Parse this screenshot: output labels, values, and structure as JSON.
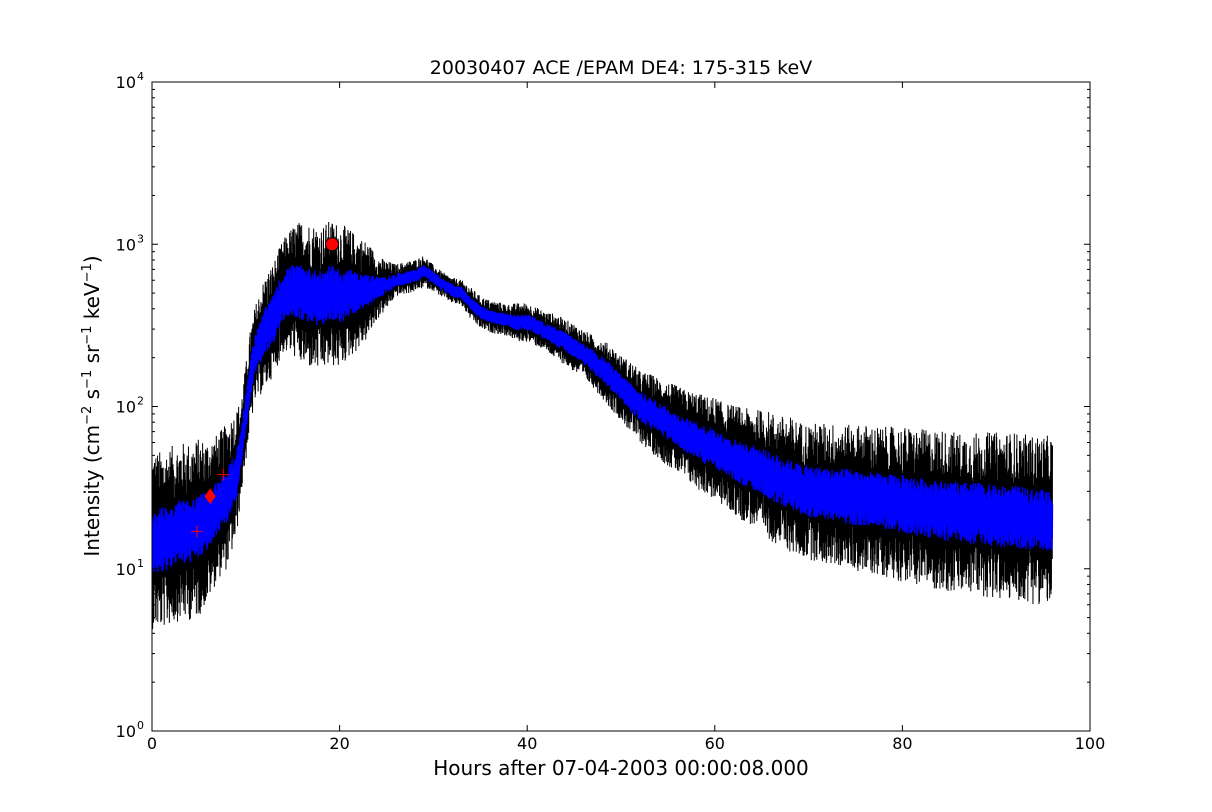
{
  "chart_data": {
    "type": "line",
    "title": "20030407 ACE /EPAM DE4: 175-315 keV",
    "xlabel": "Hours after 07-04-2003 00:00:08.000",
    "ylabel": {
      "prefix": "Intensity (cm",
      "sup1": "−2",
      "mid1": " s",
      "sup2": "−1",
      "mid2": " sr",
      "sup3": "−1",
      "mid3": " keV",
      "sup4": "−1",
      "suffix": ")"
    },
    "xlim": [
      0,
      100
    ],
    "ylim": [
      1,
      10000
    ],
    "yscale": "log",
    "grid": false,
    "legend": "none",
    "xticks": [
      0,
      20,
      40,
      60,
      80,
      100
    ],
    "xtick_labels": [
      "0",
      "20",
      "40",
      "60",
      "80",
      "100"
    ],
    "yticks": [
      1,
      10,
      100,
      1000,
      10000
    ],
    "ytick_labels": [
      {
        "base": "10",
        "exp": "0"
      },
      {
        "base": "10",
        "exp": "1"
      },
      {
        "base": "10",
        "exp": "2"
      },
      {
        "base": "10",
        "exp": "3"
      },
      {
        "base": "10",
        "exp": "4"
      }
    ],
    "series": [
      {
        "color": "#000000",
        "style": "raw",
        "x": [
          0,
          1,
          2,
          3,
          4,
          5,
          6,
          7,
          8,
          9,
          9.5,
          10,
          10.5,
          11,
          12,
          13,
          14,
          15,
          16,
          17,
          18,
          19,
          20,
          21,
          22,
          23,
          24,
          25,
          26,
          27,
          28,
          29,
          30,
          31,
          32,
          33,
          34,
          35,
          36,
          37,
          38,
          39,
          40,
          41,
          42,
          43,
          44,
          45,
          46,
          47,
          48,
          49,
          50,
          51,
          52,
          53,
          54,
          55,
          56,
          57,
          58,
          59,
          60,
          61,
          62,
          63,
          64,
          65,
          66,
          67,
          68,
          69,
          70,
          72,
          74,
          76,
          78,
          80,
          82,
          84,
          86,
          88,
          90,
          92,
          94,
          95,
          96
        ],
        "y": [
          15,
          15,
          16,
          17,
          17,
          18,
          20,
          24,
          28,
          38,
          55,
          90,
          150,
          210,
          280,
          350,
          480,
          520,
          500,
          480,
          460,
          500,
          480,
          500,
          500,
          520,
          540,
          560,
          600,
          620,
          640,
          680,
          620,
          560,
          520,
          500,
          430,
          380,
          360,
          350,
          340,
          330,
          330,
          310,
          290,
          270,
          250,
          230,
          210,
          190,
          170,
          150,
          130,
          115,
          100,
          92,
          85,
          78,
          72,
          66,
          62,
          58,
          55,
          50,
          47,
          44,
          42,
          40,
          37,
          35,
          33,
          31,
          30,
          29,
          28,
          27,
          26,
          25,
          24,
          23,
          22,
          22,
          21,
          21,
          20,
          20,
          20
        ],
        "spread": [
          0.55,
          0.55,
          0.55,
          0.55,
          0.55,
          0.55,
          0.5,
          0.45,
          0.45,
          0.4,
          0.3,
          0.3,
          0.3,
          0.3,
          0.35,
          0.35,
          0.35,
          0.4,
          0.45,
          0.45,
          0.45,
          0.45,
          0.45,
          0.4,
          0.35,
          0.3,
          0.2,
          0.15,
          0.1,
          0.1,
          0.1,
          0.1,
          0.08,
          0.08,
          0.08,
          0.08,
          0.1,
          0.1,
          0.1,
          0.1,
          0.1,
          0.12,
          0.12,
          0.12,
          0.12,
          0.14,
          0.14,
          0.15,
          0.15,
          0.16,
          0.18,
          0.2,
          0.2,
          0.22,
          0.22,
          0.24,
          0.25,
          0.26,
          0.27,
          0.28,
          0.3,
          0.3,
          0.32,
          0.32,
          0.34,
          0.35,
          0.36,
          0.38,
          0.4,
          0.4,
          0.42,
          0.42,
          0.42,
          0.44,
          0.44,
          0.46,
          0.46,
          0.48,
          0.48,
          0.5,
          0.5,
          0.5,
          0.52,
          0.52,
          0.52,
          0.52,
          0.52
        ]
      },
      {
        "color": "#0000ff",
        "style": "smoothed",
        "x": [
          0,
          1,
          2,
          3,
          4,
          5,
          6,
          7,
          8,
          9,
          9.5,
          10,
          10.5,
          11,
          12,
          13,
          14,
          15,
          16,
          17,
          18,
          19,
          20,
          21,
          22,
          23,
          24,
          25,
          26,
          27,
          28,
          29,
          30,
          31,
          32,
          33,
          34,
          35,
          36,
          37,
          38,
          39,
          40,
          41,
          42,
          43,
          44,
          45,
          46,
          47,
          48,
          49,
          50,
          51,
          52,
          53,
          54,
          55,
          56,
          57,
          58,
          59,
          60,
          61,
          62,
          63,
          64,
          65,
          66,
          67,
          68,
          69,
          70,
          72,
          74,
          76,
          78,
          80,
          82,
          84,
          86,
          88,
          90,
          92,
          94,
          95,
          96
        ],
        "y": [
          15,
          15,
          16,
          17,
          17,
          18,
          20,
          24,
          28,
          38,
          55,
          90,
          150,
          210,
          280,
          350,
          480,
          520,
          500,
          480,
          460,
          500,
          480,
          500,
          500,
          520,
          540,
          560,
          600,
          620,
          640,
          680,
          620,
          560,
          520,
          500,
          430,
          380,
          360,
          350,
          340,
          330,
          330,
          310,
          290,
          270,
          250,
          230,
          210,
          190,
          170,
          150,
          130,
          115,
          100,
          92,
          85,
          78,
          72,
          66,
          62,
          58,
          55,
          50,
          47,
          44,
          42,
          40,
          37,
          35,
          33,
          31,
          30,
          29,
          28,
          27,
          26,
          25,
          24,
          23,
          22,
          22,
          21,
          21,
          20,
          20,
          20
        ],
        "spread": [
          0.2,
          0.2,
          0.2,
          0.2,
          0.2,
          0.2,
          0.18,
          0.16,
          0.16,
          0.15,
          0.12,
          0.12,
          0.12,
          0.12,
          0.15,
          0.15,
          0.15,
          0.16,
          0.17,
          0.17,
          0.17,
          0.17,
          0.17,
          0.15,
          0.12,
          0.1,
          0.07,
          0.05,
          0.04,
          0.04,
          0.04,
          0.04,
          0.04,
          0.04,
          0.04,
          0.04,
          0.04,
          0.04,
          0.04,
          0.04,
          0.04,
          0.05,
          0.05,
          0.05,
          0.05,
          0.06,
          0.06,
          0.06,
          0.06,
          0.07,
          0.08,
          0.08,
          0.08,
          0.09,
          0.09,
          0.1,
          0.1,
          0.1,
          0.1,
          0.11,
          0.11,
          0.12,
          0.12,
          0.12,
          0.13,
          0.13,
          0.14,
          0.14,
          0.15,
          0.15,
          0.15,
          0.16,
          0.16,
          0.16,
          0.17,
          0.17,
          0.17,
          0.18,
          0.18,
          0.18,
          0.19,
          0.19,
          0.19,
          0.19,
          0.19,
          0.19,
          0.19
        ]
      }
    ],
    "markers": [
      {
        "shape": "plus",
        "x": 4.8,
        "y": 17,
        "color": "#ff0000"
      },
      {
        "shape": "diamond",
        "x": 6.2,
        "y": 28,
        "color": "#ff0000"
      },
      {
        "shape": "plus",
        "x": 7.6,
        "y": 38,
        "color": "#ff0000"
      },
      {
        "shape": "circle",
        "x": 19.2,
        "y": 1000,
        "color": "#ff0000"
      }
    ]
  }
}
